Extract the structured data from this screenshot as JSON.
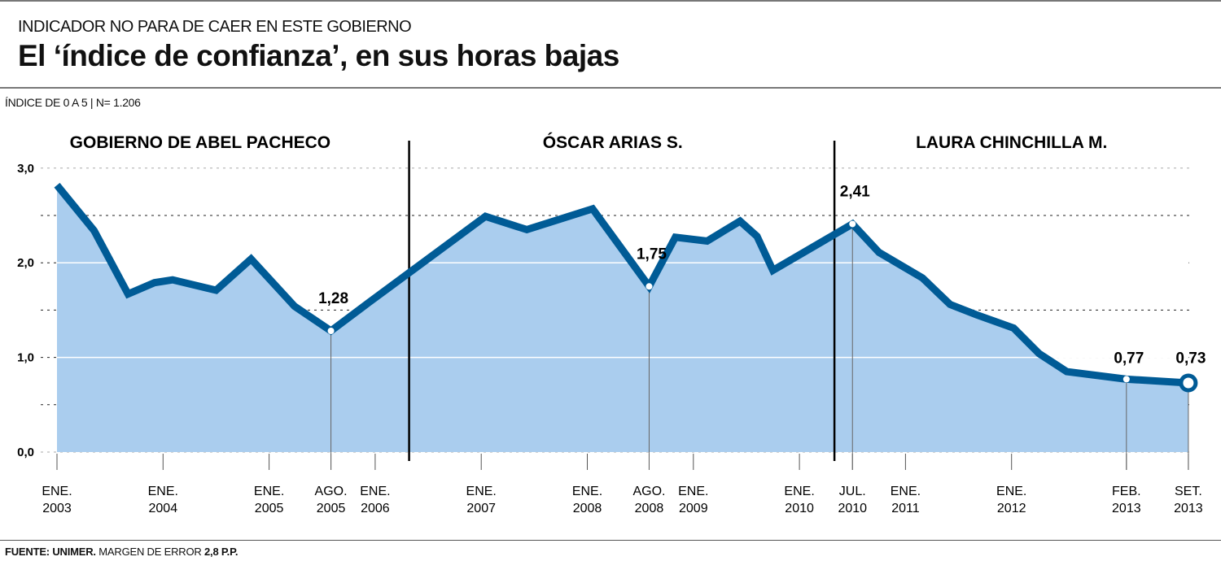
{
  "header": {
    "kicker": "INDICADOR NO PARA DE CAER EN ESTE GOBIERNO",
    "title": "El ‘índice de confianza’, en sus horas bajas",
    "meta": "ÍNDICE DE 0 A 5  | N= 1.206"
  },
  "footer": {
    "source_label": "FUENTE:",
    "source_name": "UNIMER.",
    "margin_text": "MARGEN DE ERROR",
    "margin_value": "2,8 P.P."
  },
  "colors": {
    "line": "#005b96",
    "fill": "#aacdee",
    "text": "#111111"
  },
  "chart_data": {
    "type": "area",
    "title": "El ‘índice de confianza’, en sus horas bajas",
    "ylabel": "ÍNDICE DE 0 A 5",
    "ylim": [
      0,
      3
    ],
    "yticks": [
      {
        "v": 0,
        "label": "0,0"
      },
      {
        "v": 1,
        "label": "1,0"
      },
      {
        "v": 2,
        "label": "2,0"
      },
      {
        "v": 3,
        "label": "3,0"
      }
    ],
    "xlim": [
      2003,
      2013.67
    ],
    "xticks": [
      {
        "x": 2003,
        "l1": "ENE.",
        "l2": "2003"
      },
      {
        "x": 2004,
        "l1": "ENE.",
        "l2": "2004"
      },
      {
        "x": 2005,
        "l1": "ENE.",
        "l2": "2005"
      },
      {
        "x": 2005.583,
        "l1": "AGO.",
        "l2": "2005"
      },
      {
        "x": 2006,
        "l1": "ENE.",
        "l2": "2006"
      },
      {
        "x": 2007,
        "l1": "ENE.",
        "l2": "2007"
      },
      {
        "x": 2008,
        "l1": "ENE.",
        "l2": "2008"
      },
      {
        "x": 2008.583,
        "l1": "AGO.",
        "l2": "2008"
      },
      {
        "x": 2009,
        "l1": "ENE.",
        "l2": "2009"
      },
      {
        "x": 2010,
        "l1": "ENE.",
        "l2": "2010"
      },
      {
        "x": 2010.5,
        "l1": "JUL.",
        "l2": "2010"
      },
      {
        "x": 2011,
        "l1": "ENE.",
        "l2": "2011"
      },
      {
        "x": 2012,
        "l1": "ENE.",
        "l2": "2012"
      },
      {
        "x": 2013.083,
        "l1": "FEB.",
        "l2": "2013"
      },
      {
        "x": 2013.667,
        "l1": "SET.",
        "l2": "2013"
      }
    ],
    "governments": [
      {
        "name": "GOBIERNO DE ABEL PACHECO",
        "center": 2004.35
      },
      {
        "name": "ÓSCAR ARIAS S.",
        "center": 2008.24
      },
      {
        "name": "LAURA CHINCHILLA M.",
        "center": 2012.0
      }
    ],
    "dividers": [
      2006.32,
      2010.33
    ],
    "series": [
      {
        "name": "Índice de confianza",
        "x": [
          2003.0,
          2003.35,
          2003.67,
          2003.92,
          2004.09,
          2004.5,
          2004.83,
          2005.24,
          2005.583,
          2005.94,
          2007.04,
          2007.43,
          2008.05,
          2008.583,
          2008.83,
          2009.13,
          2009.44,
          2009.6,
          2009.75,
          2010.5,
          2010.75,
          2011.16,
          2011.42,
          2011.67,
          2012.02,
          2012.26,
          2012.52,
          2013.083,
          2013.667
        ],
        "y": [
          2.82,
          2.34,
          1.67,
          1.79,
          1.82,
          1.71,
          2.04,
          1.54,
          1.28,
          1.58,
          2.49,
          2.35,
          2.57,
          1.75,
          2.27,
          2.23,
          2.44,
          2.28,
          1.92,
          2.41,
          2.11,
          1.84,
          1.56,
          1.45,
          1.31,
          1.04,
          0.85,
          0.77,
          0.73
        ]
      }
    ],
    "annotations": [
      {
        "x": 2005.583,
        "y": 1.28,
        "label": "1,28"
      },
      {
        "x": 2008.583,
        "y": 1.75,
        "label": "1,75"
      },
      {
        "x": 2010.5,
        "y": 2.41,
        "label": "2,41"
      },
      {
        "x": 2013.083,
        "y": 0.77,
        "label": "0,77"
      },
      {
        "x": 2013.667,
        "y": 0.73,
        "label": "0,73"
      }
    ]
  }
}
